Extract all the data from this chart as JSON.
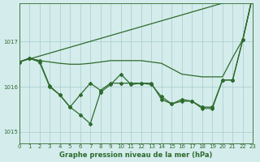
{
  "background_color": "#d4ecec",
  "grid_color": "#a8cccc",
  "line_color": "#2d6b2d",
  "title": "Graphe pression niveau de la mer (hPa)",
  "xlim": [
    0,
    23
  ],
  "ylim": [
    1014.75,
    1017.85
  ],
  "yticks": [
    1015,
    1016,
    1017
  ],
  "xticks": [
    0,
    1,
    2,
    3,
    4,
    5,
    6,
    7,
    8,
    9,
    10,
    11,
    12,
    13,
    14,
    15,
    16,
    17,
    18,
    19,
    20,
    21,
    22,
    23
  ],
  "line_smooth": [
    [
      0,
      1016.55
    ],
    [
      23,
      1018.05
    ]
  ],
  "line_flat": [
    [
      0,
      1016.55
    ],
    [
      1,
      1016.63
    ],
    [
      2,
      1016.58
    ],
    [
      3,
      1016.55
    ],
    [
      4,
      1016.52
    ],
    [
      5,
      1016.5
    ],
    [
      6,
      1016.5
    ],
    [
      7,
      1016.52
    ],
    [
      8,
      1016.55
    ],
    [
      9,
      1016.58
    ],
    [
      10,
      1016.58
    ],
    [
      11,
      1016.58
    ],
    [
      12,
      1016.58
    ],
    [
      13,
      1016.55
    ],
    [
      14,
      1016.52
    ],
    [
      15,
      1016.4
    ],
    [
      16,
      1016.28
    ],
    [
      17,
      1016.25
    ],
    [
      18,
      1016.22
    ],
    [
      19,
      1016.22
    ],
    [
      20,
      1016.22
    ],
    [
      21,
      1016.65
    ],
    [
      22,
      1017.05
    ],
    [
      23,
      1018.05
    ]
  ],
  "line_markers1": [
    [
      0,
      1016.55
    ],
    [
      1,
      1016.63
    ],
    [
      2,
      1016.55
    ],
    [
      3,
      1016.0
    ],
    [
      4,
      1015.82
    ],
    [
      5,
      1015.55
    ],
    [
      6,
      1015.38
    ],
    [
      7,
      1015.18
    ],
    [
      8,
      1015.88
    ],
    [
      9,
      1016.05
    ],
    [
      10,
      1016.28
    ],
    [
      11,
      1016.05
    ],
    [
      12,
      1016.08
    ],
    [
      13,
      1016.05
    ],
    [
      14,
      1015.78
    ],
    [
      15,
      1015.62
    ],
    [
      16,
      1015.72
    ],
    [
      17,
      1015.68
    ],
    [
      18,
      1015.55
    ],
    [
      19,
      1015.55
    ],
    [
      20,
      1016.15
    ],
    [
      21,
      1016.15
    ],
    [
      22,
      1017.05
    ],
    [
      23,
      1018.05
    ]
  ],
  "line_markers2": [
    [
      0,
      1016.55
    ],
    [
      1,
      1016.63
    ],
    [
      2,
      1016.58
    ],
    [
      3,
      1016.02
    ],
    [
      4,
      1015.82
    ],
    [
      5,
      1015.55
    ],
    [
      6,
      1015.82
    ],
    [
      7,
      1016.08
    ],
    [
      8,
      1015.92
    ],
    [
      9,
      1016.08
    ],
    [
      10,
      1016.08
    ],
    [
      11,
      1016.08
    ],
    [
      12,
      1016.08
    ],
    [
      13,
      1016.08
    ],
    [
      14,
      1015.72
    ],
    [
      15,
      1015.62
    ],
    [
      16,
      1015.68
    ],
    [
      17,
      1015.68
    ],
    [
      18,
      1015.52
    ],
    [
      19,
      1015.52
    ],
    [
      20,
      1016.15
    ],
    [
      21,
      1016.15
    ],
    [
      22,
      1017.05
    ],
    [
      23,
      1018.05
    ]
  ]
}
